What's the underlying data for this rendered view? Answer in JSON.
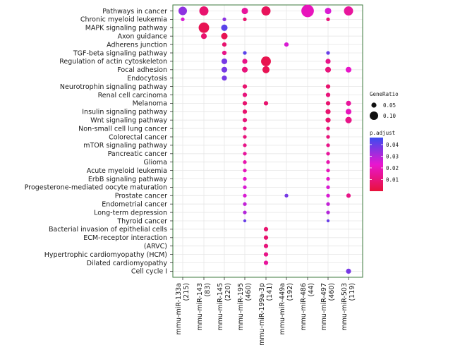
{
  "chart_data": {
    "type": "scatter",
    "subtype": "dot-plot",
    "title": "",
    "xlabel": "",
    "ylabel": "",
    "x_categories": [
      {
        "name": "mmu-miR-133a",
        "count": "(215)"
      },
      {
        "name": "mmu-miR-143",
        "count": "(83)"
      },
      {
        "name": "mmu-miR-145",
        "count": "(220)"
      },
      {
        "name": "mmu-miR-195",
        "count": "(460)"
      },
      {
        "name": "mmu-miR-199a-3p",
        "count": "(141)"
      },
      {
        "name": "mmu-miR-449a",
        "count": "(192)"
      },
      {
        "name": "mmu-miR-486",
        "count": "(44)"
      },
      {
        "name": "mmu-miR-497",
        "count": "(460)"
      },
      {
        "name": "mmu-miR-503",
        "count": "(119)"
      }
    ],
    "y_categories": [
      "Pathways in cancer",
      "Chronic myeloid leukemia",
      "MAPK signaling pathway",
      "Axon guidance",
      "Adherens junction",
      "TGF-beta signaling pathway",
      "Regulation of actin cytoskeleton",
      "Focal adhesion",
      "Endocytosis",
      "Neurotrophin signaling pathway",
      "Renal cell carcinoma",
      "Melanoma",
      "Insulin signaling pathway",
      "Wnt signaling pathway",
      "Non-small cell lung cancer",
      "Colorectal cancer",
      "mTOR signaling pathway",
      "Pancreatic cancer",
      "Glioma",
      "Acute myeloid leukemia",
      "ErbB signaling pathway",
      "Progesterone-mediated oocyte maturation",
      "Prostate cancer",
      "Endometrial cancer",
      "Long-term depression",
      "Thyroid cancer",
      "Bacterial invasion of epithelial cells",
      "ECM-receptor interaction",
      "(ARVC)",
      "Hypertrophic cardiomyopathy (HCM)",
      "Dilated cardiomyopathy",
      "Cell cycle I"
    ],
    "points": [
      {
        "x": 0,
        "y": 0,
        "ratio": 0.1,
        "p": 0.035
      },
      {
        "x": 1,
        "y": 0,
        "ratio": 0.11,
        "p": 0.008
      },
      {
        "x": 3,
        "y": 0,
        "ratio": 0.07,
        "p": 0.015
      },
      {
        "x": 4,
        "y": 0,
        "ratio": 0.11,
        "p": 0.005
      },
      {
        "x": 6,
        "y": 0,
        "ratio": 0.16,
        "p": 0.02
      },
      {
        "x": 7,
        "y": 0,
        "ratio": 0.07,
        "p": 0.025
      },
      {
        "x": 8,
        "y": 0,
        "ratio": 0.11,
        "p": 0.015
      },
      {
        "x": 0,
        "y": 1,
        "ratio": 0.03,
        "p": 0.025
      },
      {
        "x": 2,
        "y": 1,
        "ratio": 0.03,
        "p": 0.035
      },
      {
        "x": 3,
        "y": 1,
        "ratio": 0.03,
        "p": 0.008
      },
      {
        "x": 7,
        "y": 1,
        "ratio": 0.03,
        "p": 0.01
      },
      {
        "x": 1,
        "y": 2,
        "ratio": 0.13,
        "p": 0.004
      },
      {
        "x": 2,
        "y": 2,
        "ratio": 0.07,
        "p": 0.042
      },
      {
        "x": 1,
        "y": 3,
        "ratio": 0.06,
        "p": 0.008
      },
      {
        "x": 2,
        "y": 3,
        "ratio": 0.07,
        "p": 0.004
      },
      {
        "x": 2,
        "y": 4,
        "ratio": 0.04,
        "p": 0.008
      },
      {
        "x": 5,
        "y": 4,
        "ratio": 0.04,
        "p": 0.025
      },
      {
        "x": 2,
        "y": 5,
        "ratio": 0.04,
        "p": 0.012
      },
      {
        "x": 3,
        "y": 5,
        "ratio": 0.03,
        "p": 0.042
      },
      {
        "x": 7,
        "y": 5,
        "ratio": 0.03,
        "p": 0.04
      },
      {
        "x": 2,
        "y": 6,
        "ratio": 0.06,
        "p": 0.038
      },
      {
        "x": 3,
        "y": 6,
        "ratio": 0.05,
        "p": 0.012
      },
      {
        "x": 4,
        "y": 6,
        "ratio": 0.12,
        "p": 0.003
      },
      {
        "x": 7,
        "y": 6,
        "ratio": 0.05,
        "p": 0.012
      },
      {
        "x": 2,
        "y": 7,
        "ratio": 0.06,
        "p": 0.038
      },
      {
        "x": 3,
        "y": 7,
        "ratio": 0.06,
        "p": 0.01
      },
      {
        "x": 4,
        "y": 7,
        "ratio": 0.08,
        "p": 0.004
      },
      {
        "x": 7,
        "y": 7,
        "ratio": 0.06,
        "p": 0.01
      },
      {
        "x": 8,
        "y": 7,
        "ratio": 0.06,
        "p": 0.022
      },
      {
        "x": 2,
        "y": 8,
        "ratio": 0.05,
        "p": 0.038
      },
      {
        "x": 3,
        "y": 9,
        "ratio": 0.04,
        "p": 0.008
      },
      {
        "x": 7,
        "y": 9,
        "ratio": 0.04,
        "p": 0.008
      },
      {
        "x": 3,
        "y": 10,
        "ratio": 0.04,
        "p": 0.01
      },
      {
        "x": 7,
        "y": 10,
        "ratio": 0.04,
        "p": 0.01
      },
      {
        "x": 3,
        "y": 11,
        "ratio": 0.04,
        "p": 0.008
      },
      {
        "x": 4,
        "y": 11,
        "ratio": 0.04,
        "p": 0.008
      },
      {
        "x": 7,
        "y": 11,
        "ratio": 0.04,
        "p": 0.008
      },
      {
        "x": 8,
        "y": 11,
        "ratio": 0.05,
        "p": 0.015
      },
      {
        "x": 3,
        "y": 12,
        "ratio": 0.04,
        "p": 0.008
      },
      {
        "x": 7,
        "y": 12,
        "ratio": 0.05,
        "p": 0.008
      },
      {
        "x": 8,
        "y": 12,
        "ratio": 0.06,
        "p": 0.02
      },
      {
        "x": 3,
        "y": 13,
        "ratio": 0.04,
        "p": 0.01
      },
      {
        "x": 7,
        "y": 13,
        "ratio": 0.05,
        "p": 0.008
      },
      {
        "x": 8,
        "y": 13,
        "ratio": 0.07,
        "p": 0.012
      },
      {
        "x": 3,
        "y": 14,
        "ratio": 0.03,
        "p": 0.01
      },
      {
        "x": 7,
        "y": 14,
        "ratio": 0.03,
        "p": 0.01
      },
      {
        "x": 3,
        "y": 15,
        "ratio": 0.03,
        "p": 0.01
      },
      {
        "x": 7,
        "y": 15,
        "ratio": 0.03,
        "p": 0.01
      },
      {
        "x": 3,
        "y": 16,
        "ratio": 0.03,
        "p": 0.012
      },
      {
        "x": 7,
        "y": 16,
        "ratio": 0.03,
        "p": 0.012
      },
      {
        "x": 3,
        "y": 17,
        "ratio": 0.03,
        "p": 0.015
      },
      {
        "x": 7,
        "y": 17,
        "ratio": 0.03,
        "p": 0.015
      },
      {
        "x": 3,
        "y": 18,
        "ratio": 0.03,
        "p": 0.018
      },
      {
        "x": 7,
        "y": 18,
        "ratio": 0.03,
        "p": 0.018
      },
      {
        "x": 3,
        "y": 19,
        "ratio": 0.03,
        "p": 0.02
      },
      {
        "x": 7,
        "y": 19,
        "ratio": 0.03,
        "p": 0.02
      },
      {
        "x": 3,
        "y": 20,
        "ratio": 0.03,
        "p": 0.022
      },
      {
        "x": 7,
        "y": 20,
        "ratio": 0.03,
        "p": 0.022
      },
      {
        "x": 3,
        "y": 21,
        "ratio": 0.03,
        "p": 0.025
      },
      {
        "x": 7,
        "y": 21,
        "ratio": 0.03,
        "p": 0.025
      },
      {
        "x": 3,
        "y": 22,
        "ratio": 0.03,
        "p": 0.025
      },
      {
        "x": 5,
        "y": 22,
        "ratio": 0.03,
        "p": 0.038
      },
      {
        "x": 7,
        "y": 22,
        "ratio": 0.03,
        "p": 0.025
      },
      {
        "x": 8,
        "y": 22,
        "ratio": 0.04,
        "p": 0.012
      },
      {
        "x": 3,
        "y": 23,
        "ratio": 0.03,
        "p": 0.028
      },
      {
        "x": 7,
        "y": 23,
        "ratio": 0.03,
        "p": 0.028
      },
      {
        "x": 3,
        "y": 24,
        "ratio": 0.03,
        "p": 0.03
      },
      {
        "x": 7,
        "y": 24,
        "ratio": 0.03,
        "p": 0.03
      },
      {
        "x": 3,
        "y": 25,
        "ratio": 0.02,
        "p": 0.04
      },
      {
        "x": 7,
        "y": 25,
        "ratio": 0.02,
        "p": 0.04
      },
      {
        "x": 4,
        "y": 26,
        "ratio": 0.04,
        "p": 0.008
      },
      {
        "x": 4,
        "y": 27,
        "ratio": 0.04,
        "p": 0.008
      },
      {
        "x": 4,
        "y": 28,
        "ratio": 0.04,
        "p": 0.01
      },
      {
        "x": 4,
        "y": 29,
        "ratio": 0.04,
        "p": 0.012
      },
      {
        "x": 4,
        "y": 30,
        "ratio": 0.04,
        "p": 0.015
      },
      {
        "x": 8,
        "y": 31,
        "ratio": 0.05,
        "p": 0.038
      }
    ],
    "legend_size": {
      "title": "GeneRatio",
      "entries": [
        {
          "value": 0.05,
          "label": "0.05"
        },
        {
          "value": 0.1,
          "label": "0.10"
        }
      ]
    },
    "legend_color": {
      "title": "p.adjust",
      "range": [
        0.0,
        0.046
      ],
      "ticks": [
        {
          "value": 0.04,
          "label": "0.04"
        },
        {
          "value": 0.03,
          "label": "0.03"
        },
        {
          "value": 0.02,
          "label": "0.02"
        },
        {
          "value": 0.01,
          "label": "0.01"
        }
      ]
    },
    "colors": {
      "low": "#e8123a",
      "mid": "#e816d0",
      "high": "#3b4cf0",
      "panel_border": "#3d7a3d",
      "grid": "#e6e6e6"
    }
  }
}
